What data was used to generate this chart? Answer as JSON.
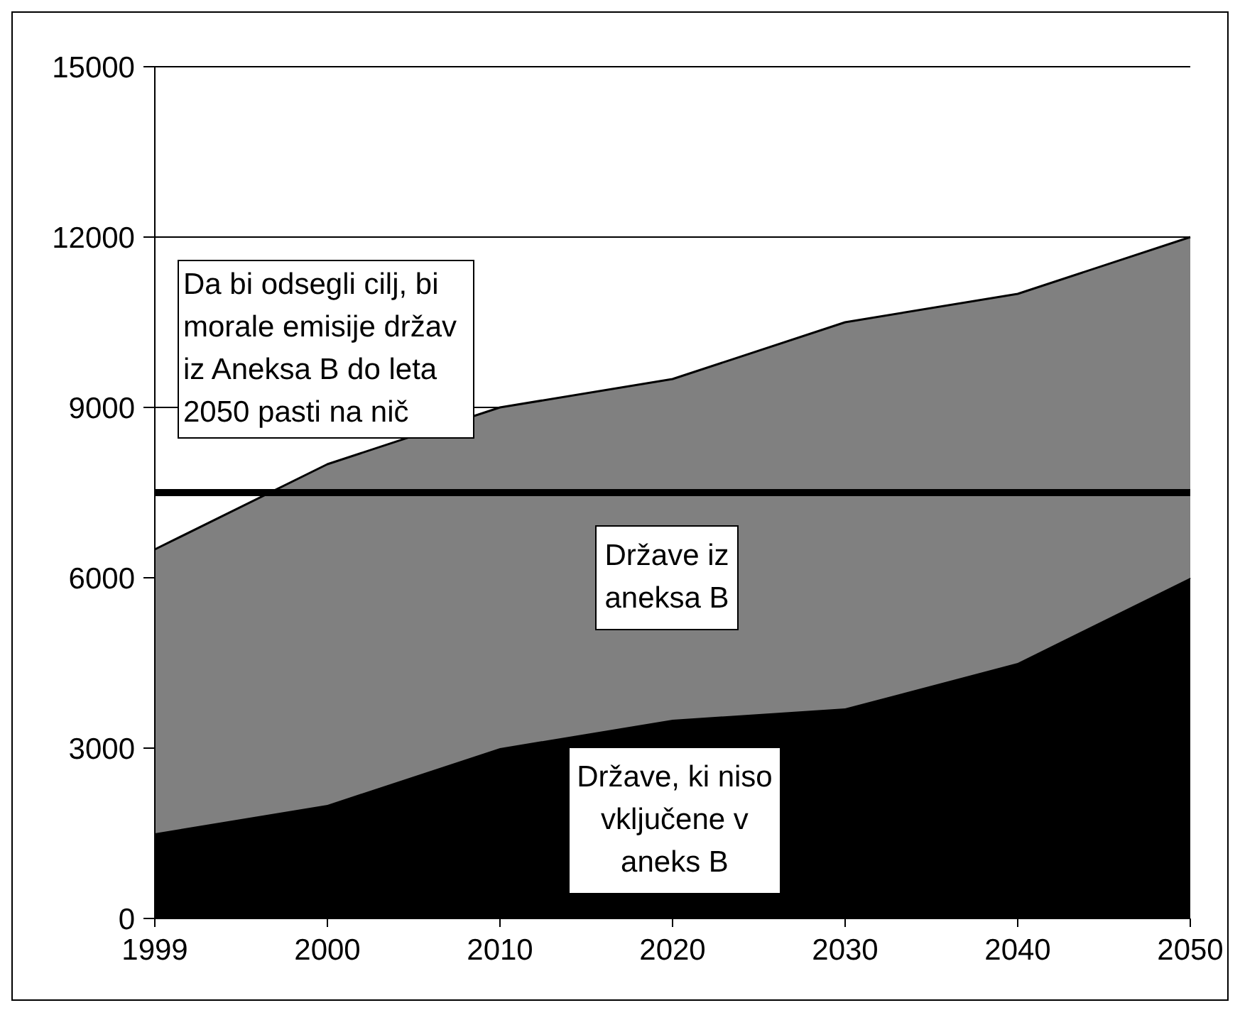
{
  "chart_data": {
    "type": "area",
    "stacked": true,
    "categories": [
      "1999",
      "2000",
      "2010",
      "2020",
      "2030",
      "2040",
      "2050"
    ],
    "series": [
      {
        "name": "Države, ki niso vključene v aneks B",
        "color": "#000000",
        "values": [
          1500,
          2000,
          3000,
          3500,
          3700,
          4500,
          6000
        ]
      },
      {
        "name": "Države iz aneksa B",
        "color": "#808080",
        "values": [
          5000,
          6000,
          6000,
          6000,
          6800,
          6500,
          6000
        ]
      }
    ],
    "ylim": [
      0,
      15000
    ],
    "yticks": [
      0,
      3000,
      6000,
      9000,
      12000,
      15000
    ],
    "grid": "y",
    "ref_lines": [
      {
        "axis": "y",
        "value": 7500,
        "color": "#000000"
      }
    ],
    "annotations": [
      "Da bi odsegli cilj, bi morale emisije držav iz Aneksa B do leta 2050 pasti na nič"
    ]
  }
}
